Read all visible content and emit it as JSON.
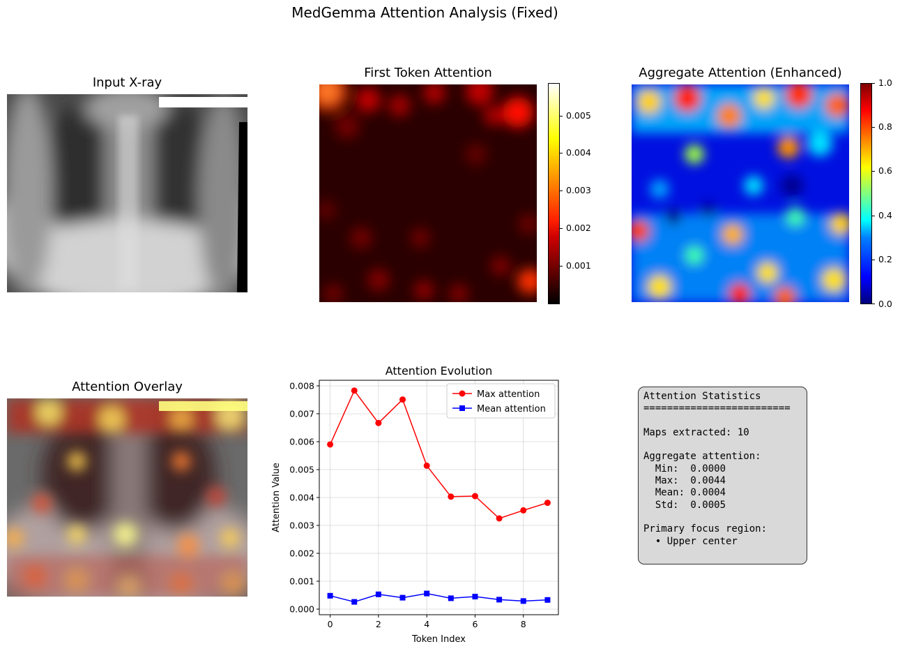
{
  "suptitle": "MedGemma Attention Analysis (Fixed)",
  "panels": {
    "xray_title": "Input X-ray",
    "first_token_title": "First Token Attention",
    "aggregate_title": "Aggregate Attention (Enhanced)",
    "overlay_title": "Attention Overlay"
  },
  "colorbars": {
    "first_token": {
      "colormap": "hot",
      "range": [
        0,
        0.0058
      ],
      "ticks": [
        "0.001",
        "0.002",
        "0.003",
        "0.004",
        "0.005"
      ]
    },
    "aggregate": {
      "colormap": "jet",
      "range": [
        0,
        1
      ],
      "ticks": [
        "0.0",
        "0.2",
        "0.4",
        "0.6",
        "0.8",
        "1.0"
      ]
    }
  },
  "chart_data": {
    "type": "line",
    "title": "Attention Evolution",
    "xlabel": "Token Index",
    "ylabel": "Attention Value",
    "x": [
      0,
      1,
      2,
      3,
      4,
      5,
      6,
      7,
      8,
      9
    ],
    "xlim": [
      -0.45,
      9.45
    ],
    "ylim": [
      -0.0002,
      0.0082
    ],
    "xticks": [
      "0",
      "2",
      "4",
      "6",
      "8"
    ],
    "yticks": [
      "0.000",
      "0.001",
      "0.002",
      "0.003",
      "0.004",
      "0.005",
      "0.006",
      "0.007",
      "0.008"
    ],
    "grid": true,
    "legend_position": "top-right",
    "series": [
      {
        "name": "Max attention",
        "color": "#ff0000",
        "marker": "circle",
        "values": [
          0.0059,
          0.00783,
          0.00667,
          0.00751,
          0.00514,
          0.00403,
          0.00405,
          0.00325,
          0.00354,
          0.00381
        ]
      },
      {
        "name": "Mean attention",
        "color": "#0000ff",
        "marker": "square",
        "values": [
          0.00048,
          0.00026,
          0.00053,
          0.00041,
          0.00056,
          0.00039,
          0.00045,
          0.00034,
          0.00029,
          0.00033
        ]
      }
    ]
  },
  "stats": {
    "title": "Attention Statistics",
    "rule": "=========================",
    "maps": "Maps extracted: 10",
    "aggregate_header": "Aggregate attention:",
    "min": "  Min:  0.0000",
    "max": "  Max:  0.0044",
    "mean": "  Mean: 0.0004",
    "std": "  Std:  0.0005",
    "focus_header": "Primary focus region:",
    "focus_value": "  • Upper center"
  }
}
